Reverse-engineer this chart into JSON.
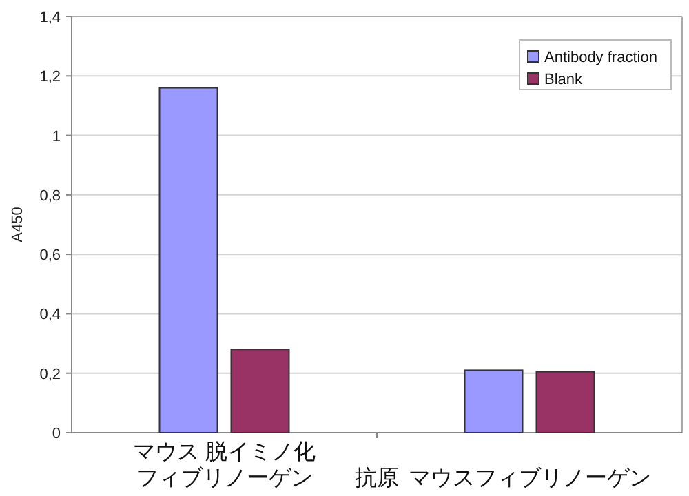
{
  "chart_data": {
    "type": "bar",
    "categories": [
      "マウス 脱イミノ化フィブリノーゲン",
      "マウスフィブリノーゲン"
    ],
    "xlabel": "抗原",
    "ylabel": "A450",
    "series": [
      {
        "name": "Antibody fraction",
        "color": "#9999ff",
        "values": [
          1.16,
          0.21
        ]
      },
      {
        "name": "Blank",
        "color": "#993366",
        "values": [
          0.28,
          0.205
        ]
      }
    ],
    "ylim": [
      0,
      1.4
    ],
    "yticks": [
      0,
      {
        "value": 0.2,
        "label": "0,2"
      },
      {
        "value": 0.4,
        "label": "0,4"
      },
      {
        "value": 0.6,
        "label": "0,6"
      },
      {
        "value": 0.8,
        "label": "0,8"
      },
      1,
      {
        "value": 1.2,
        "label": "1,2"
      },
      {
        "value": 1.4,
        "label": "1,4"
      }
    ],
    "grid": "y",
    "legend": "top right"
  }
}
